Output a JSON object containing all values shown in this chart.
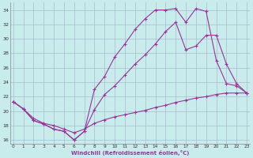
{
  "bg_color": "#c8ecec",
  "grid_color": "#aabbcc",
  "line_color": "#993399",
  "xlim_min": -0.3,
  "xlim_max": 23.3,
  "ylim_min": 15.5,
  "ylim_max": 35.0,
  "yticks": [
    16,
    18,
    20,
    22,
    24,
    26,
    28,
    30,
    32,
    34
  ],
  "xticks": [
    0,
    1,
    2,
    3,
    4,
    5,
    6,
    7,
    8,
    9,
    10,
    11,
    12,
    13,
    14,
    15,
    16,
    17,
    18,
    19,
    20,
    21,
    22,
    23
  ],
  "xlabel": "Windchill (Refroidissement éolien,°C)",
  "line1_x": [
    0,
    1,
    2,
    3,
    4,
    5,
    6,
    7,
    8,
    9,
    10,
    11,
    12,
    13,
    14,
    15,
    16,
    17,
    18,
    19,
    20,
    21,
    22,
    23
  ],
  "line1_y": [
    21.3,
    20.3,
    19.0,
    18.3,
    18.0,
    17.5,
    17.0,
    17.5,
    18.3,
    18.8,
    19.2,
    19.5,
    19.8,
    20.1,
    20.5,
    20.8,
    21.2,
    21.5,
    21.8,
    22.0,
    22.3,
    22.5,
    22.5,
    22.5
  ],
  "line2_x": [
    0,
    1,
    2,
    3,
    4,
    5,
    6,
    7,
    8,
    9,
    10,
    11,
    12,
    13,
    14,
    15,
    16,
    17,
    18,
    19,
    20,
    21,
    22,
    23
  ],
  "line2_y": [
    21.3,
    20.3,
    18.7,
    18.2,
    17.5,
    17.2,
    16.0,
    17.2,
    20.2,
    22.3,
    23.5,
    25.0,
    26.5,
    27.8,
    29.3,
    31.0,
    32.3,
    28.5,
    29.0,
    30.5,
    30.5,
    26.5,
    23.8,
    22.5
  ],
  "line3_x": [
    0,
    1,
    2,
    3,
    4,
    5,
    6,
    7,
    8,
    9,
    10,
    11,
    12,
    13,
    14,
    15,
    16,
    17,
    18,
    19,
    20,
    21,
    22,
    23
  ],
  "line3_y": [
    21.3,
    20.3,
    18.7,
    18.2,
    17.5,
    17.2,
    16.0,
    17.2,
    23.0,
    24.8,
    27.5,
    29.3,
    31.3,
    32.8,
    34.0,
    34.0,
    34.2,
    32.3,
    34.2,
    33.8,
    27.0,
    23.8,
    23.5,
    22.5
  ]
}
